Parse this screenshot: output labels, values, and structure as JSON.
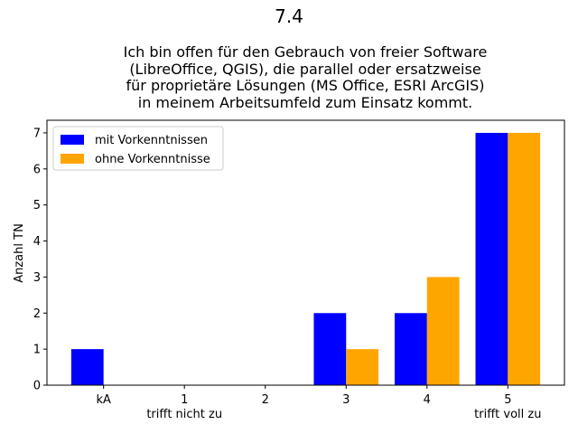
{
  "suptitle": "7.4",
  "title_lines": [
    "Ich bin offen für den Gebrauch von freier Software",
    "(LibreOffice, QGIS), die parallel oder ersatzweise",
    "für proprietäre Lösungen (MS Office, ESRI ArcGIS)",
    "in meinem Arbeitsumfeld zum Einsatz kommt."
  ],
  "chart_data": {
    "type": "bar",
    "categories": [
      "kA",
      "1",
      "2",
      "3",
      "4",
      "5"
    ],
    "category_sublabels": [
      "",
      "trifft nicht zu",
      "",
      "",
      "",
      "trifft voll zu"
    ],
    "series": [
      {
        "name": "mit Vorkenntnissen",
        "color": "#0000ff",
        "values": [
          1,
          0,
          0,
          2,
          2,
          7
        ]
      },
      {
        "name": "ohne Vorkenntnisse",
        "color": "#ffa500",
        "values": [
          0,
          0,
          0,
          1,
          3,
          7
        ]
      }
    ],
    "xlabel": "",
    "ylabel": "Anzahl TN",
    "ylim": [
      0,
      7.35
    ],
    "yticks": [
      0,
      1,
      2,
      3,
      4,
      5,
      6,
      7
    ],
    "legend_position": "top-left",
    "grid": false
  }
}
